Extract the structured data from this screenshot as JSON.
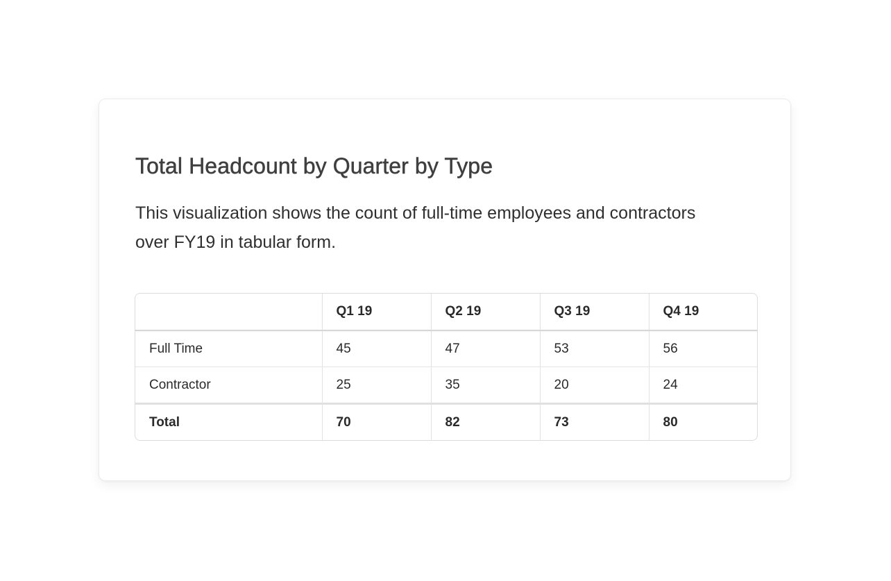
{
  "card": {
    "title": "Total Headcount by Quarter by Type",
    "description": "This visualization shows the count of full-time employees and contractors over FY19 in tabular form."
  },
  "chart_data": {
    "type": "table",
    "title": "Total Headcount by Quarter by Type",
    "subtitle": "This visualization shows the count of full-time employees and contractors over FY19 in tabular form.",
    "corner_header": "",
    "columns": [
      "Q1 19",
      "Q2 19",
      "Q3 19",
      "Q4 19"
    ],
    "rows": [
      {
        "label": "Full Time",
        "values": [
          "45",
          "47",
          "53",
          "56"
        ]
      },
      {
        "label": "Contractor",
        "values": [
          "25",
          "35",
          "20",
          "24"
        ]
      }
    ],
    "total": {
      "label": "Total",
      "values": [
        "70",
        "82",
        "73",
        "80"
      ]
    }
  }
}
